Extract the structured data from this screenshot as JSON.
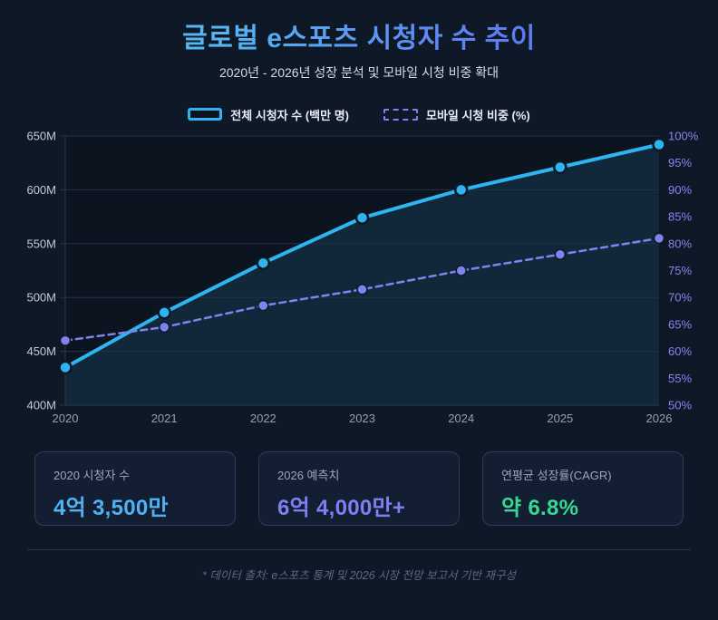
{
  "header": {
    "title": "글로벌 e스포츠 시청자 수 추이",
    "subtitle": "2020년 - 2026년 성장 분석 및 모바일 시청 비중 확대"
  },
  "legend": {
    "items": [
      {
        "label": "전체 시청자 수 (백만 명)",
        "color": "#2eb5f0",
        "style": "solid"
      },
      {
        "label": "모바일 시청 비중 (%)",
        "color": "#7e83f0",
        "style": "dashed"
      }
    ]
  },
  "chart_data": {
    "type": "line",
    "title": "글로벌 e스포츠 시청자 수 추이",
    "categories": [
      "2020",
      "2021",
      "2022",
      "2023",
      "2024",
      "2025",
      "2026"
    ],
    "series": [
      {
        "name": "전체 시청자 수 (백만 명)",
        "axis": "left",
        "style": "solid",
        "color": "#2eb5f0",
        "area_fill": true,
        "values": [
          435,
          486,
          532,
          574,
          600,
          621,
          642
        ]
      },
      {
        "name": "모바일 시청 비중 (%)",
        "axis": "right",
        "style": "dashed",
        "color": "#7e83f0",
        "area_fill": false,
        "values": [
          62,
          64.5,
          68.5,
          71.5,
          75,
          78,
          81
        ]
      }
    ],
    "left_axis": {
      "min": 400,
      "max": 650,
      "ticks": [
        "650M",
        "600M",
        "550M",
        "500M",
        "450M",
        "400M"
      ]
    },
    "right_axis": {
      "min": 50,
      "max": 100,
      "ticks": [
        "100%",
        "95%",
        "90%",
        "85%",
        "80%",
        "75%",
        "70%",
        "65%",
        "60%",
        "55%",
        "50%"
      ]
    },
    "grid": true,
    "legend_position": "top"
  },
  "stats": [
    {
      "label": "2020 시청자 수",
      "value": "4억 3,500만",
      "color": "#4fb2f2"
    },
    {
      "label": "2026 예측치",
      "value": "6억 4,000만+",
      "color": "#7d80f2"
    },
    {
      "label": "연평균 성장률(CAGR)",
      "value": "약 6.8%",
      "color": "#35d992"
    }
  ],
  "footer": {
    "note": "* 데이터 출처: e스포츠 통계 및 2026 시장 전망 보고서 기반 재구성"
  },
  "colors": {
    "page_background": "#0f1826",
    "plot_background": "#0c1420",
    "area_fill": "rgba(46,181,240,0.13)",
    "gridline": "#263049",
    "axis_line": "#2c3a55",
    "left_tick_text": "#c3cbd9",
    "right_tick_text": "#8287f2",
    "x_tick_text": "#93a0b4",
    "title_gradient_start": "#55b6f0",
    "title_gradient_end": "#5f7df2"
  }
}
